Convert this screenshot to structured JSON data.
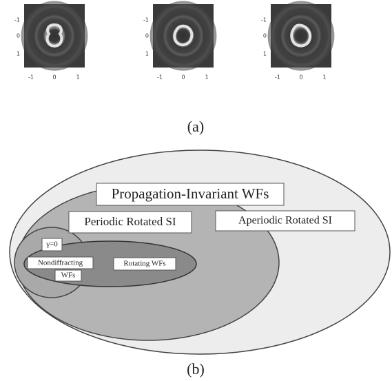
{
  "panels": [
    {
      "yticks": [
        "-1",
        "0",
        "1"
      ],
      "xticks": [
        "-1",
        "0",
        "1"
      ]
    },
    {
      "yticks": [
        "-1",
        "0",
        "1"
      ],
      "xticks": [
        "-1",
        "0",
        "1"
      ]
    },
    {
      "yticks": [
        "-1",
        "0",
        "1"
      ],
      "xticks": [
        "-1",
        "0",
        "1"
      ]
    }
  ],
  "caption_a": "(a)",
  "diagram": {
    "outer": "Propagation-Invariant WFs",
    "periodic": "Periodic Rotated SI",
    "aperiodic": "Aperiodic Rotated SI",
    "gamma": "γ=0",
    "nondiffracting": [
      "Nondiffracting",
      "WFs"
    ],
    "rotating": "Rotating WFs"
  },
  "caption_b": "(b)"
}
